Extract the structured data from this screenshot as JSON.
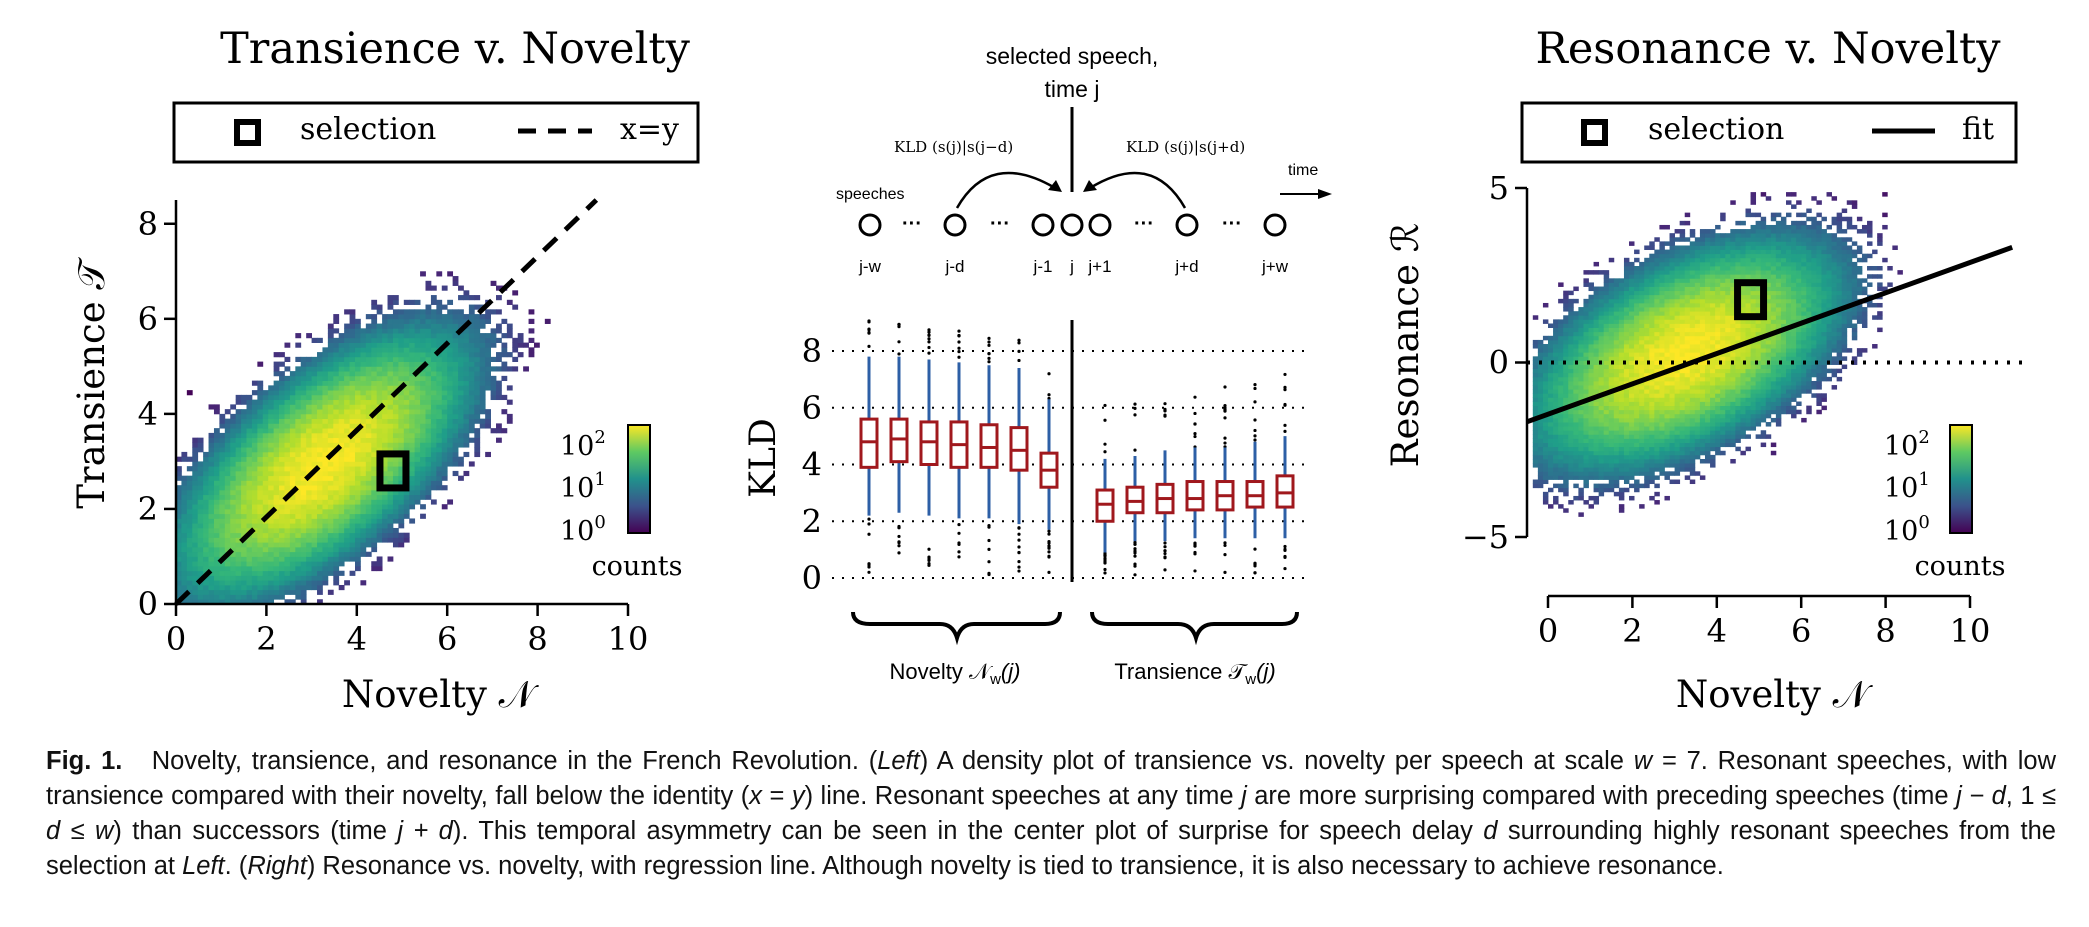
{
  "figure": {
    "left_panel": {
      "title": "Transience v. Novelty",
      "legend": {
        "selection_label": "selection",
        "line_label": "x=y"
      },
      "xlabel": "Novelty 𝒩",
      "ylabel": "Transience 𝒯",
      "colorbar": {
        "ticks": [
          "10",
          "10",
          "10"
        ],
        "exponents": [
          "2",
          "1",
          "0"
        ],
        "label": "counts"
      }
    },
    "center_panel": {
      "selected_label_1": "selected speech,",
      "selected_label_2": "time j",
      "kld_left": "KLD",
      "kld_left_args": "(s(j)|s(j−d)",
      "kld_right": "KLD",
      "kld_right_args": "(s(j)|s(j+d)",
      "speeches_label": "speeches",
      "time_label": "time",
      "node_labels": [
        "j-w",
        "j-d",
        "j-1",
        "j",
        "j+1",
        "j+d",
        "j+w"
      ],
      "ellipsis": "···",
      "ylabel": "KLD",
      "novelty_label": "Novelty 𝒩",
      "novelty_sub": "w",
      "novelty_arg": "(j)",
      "transience_label": "Transience 𝒯",
      "transience_sub": "w",
      "transience_arg": "(j)"
    },
    "right_panel": {
      "title": "Resonance v. Novelty",
      "legend": {
        "selection_label": "selection",
        "line_label": "fit"
      },
      "xlabel": "Novelty 𝒩",
      "ylabel": "Resonance ℛ",
      "colorbar": {
        "ticks": [
          "10",
          "10",
          "10"
        ],
        "exponents": [
          "2",
          "1",
          "0"
        ],
        "label": "counts"
      }
    },
    "colors": {
      "box": "#a0181d",
      "whisker": "#2d5fa6",
      "viridis_dark": "#440154",
      "viridis_mid": "#21918c",
      "viridis_bright": "#fde725"
    }
  },
  "chart_data": [
    {
      "type": "heatmap",
      "title": "Transience v. Novelty",
      "xlabel": "Novelty 𝒩",
      "ylabel": "Transience 𝒯",
      "xlim": [
        0,
        10
      ],
      "ylim": [
        0,
        8.5
      ],
      "xticks": [
        0,
        2,
        4,
        6,
        8,
        10
      ],
      "yticks": [
        0,
        2,
        4,
        6,
        8
      ],
      "density_center": [
        3.2,
        2.9
      ],
      "selection_point": [
        4.8,
        2.8
      ],
      "reference_line": "x=y",
      "colorbar_scale": "log",
      "colorbar_ticks": [
        "10^0",
        "10^1",
        "10^2"
      ]
    },
    {
      "type": "box",
      "ylabel": "KLD",
      "ylim": [
        0,
        9
      ],
      "yticks": [
        0,
        2,
        4,
        6,
        8
      ],
      "groups": [
        "Novelty 𝒩w(j)",
        "Transience 𝒯w(j)"
      ],
      "series": [
        {
          "group": "Novelty",
          "medians": [
            4.8,
            4.9,
            4.8,
            4.7,
            4.6,
            4.5,
            3.8
          ],
          "q1": [
            3.9,
            4.1,
            4.0,
            3.9,
            3.9,
            3.8,
            3.2
          ],
          "q3": [
            5.6,
            5.6,
            5.5,
            5.5,
            5.4,
            5.3,
            4.4
          ],
          "whisker_low": [
            2.2,
            2.3,
            2.2,
            2.1,
            2.1,
            1.9,
            1.7
          ],
          "whisker_high": [
            7.8,
            7.8,
            7.7,
            7.6,
            7.5,
            7.4,
            6.3
          ]
        },
        {
          "group": "Transience",
          "medians": [
            2.6,
            2.7,
            2.8,
            2.8,
            2.9,
            2.9,
            3.0
          ],
          "q1": [
            2.0,
            2.3,
            2.3,
            2.4,
            2.4,
            2.5,
            2.5
          ],
          "q3": [
            3.1,
            3.2,
            3.3,
            3.4,
            3.4,
            3.4,
            3.6
          ],
          "whisker_low": [
            0.9,
            1.3,
            1.3,
            1.4,
            1.4,
            1.4,
            1.4
          ],
          "whisker_high": [
            4.2,
            4.3,
            4.5,
            4.6,
            4.6,
            4.8,
            5.0
          ]
        }
      ]
    },
    {
      "type": "heatmap",
      "title": "Resonance v. Novelty",
      "xlabel": "Novelty 𝒩",
      "ylabel": "Resonance ℛ",
      "xlim": [
        0,
        10
      ],
      "ylim": [
        -5,
        5
      ],
      "xticks": [
        0,
        2,
        4,
        6,
        8,
        10
      ],
      "yticks": [
        -5,
        0,
        5
      ],
      "density_center": [
        3.2,
        0.2
      ],
      "selection_point": [
        4.8,
        1.8
      ],
      "fit_line": {
        "x0": -0.5,
        "y0": -1.7,
        "x1": 11,
        "y1": 3.3
      },
      "colorbar_scale": "log",
      "colorbar_ticks": [
        "10^0",
        "10^1",
        "10^2"
      ]
    }
  ],
  "caption": {
    "label": "Fig. 1.",
    "parts": [
      "Novelty, transience, and resonance in the French Revolution. (",
      "Left",
      ") A density plot of transience vs. novelty per speech at scale ",
      "w",
      " = 7. Resonant speeches, with low transience compared with their novelty, fall below the identity (",
      "x",
      " = ",
      "y",
      ") line. Resonant speeches at any time ",
      "j",
      " are more surprising compared with preceding speeches (time ",
      "j − d",
      ", 1 ≤ ",
      "d",
      " ≤ ",
      "w",
      ") than successors (time ",
      "j + d",
      "). This temporal asymmetry can be seen in the center plot of surprise for speech delay ",
      "d",
      " surrounding highly resonant speeches from the selection at ",
      "Left",
      ". (",
      "Right",
      ") Resonance vs. novelty, with regression line. Although novelty is tied to transience, it is also necessary to achieve resonance."
    ]
  }
}
